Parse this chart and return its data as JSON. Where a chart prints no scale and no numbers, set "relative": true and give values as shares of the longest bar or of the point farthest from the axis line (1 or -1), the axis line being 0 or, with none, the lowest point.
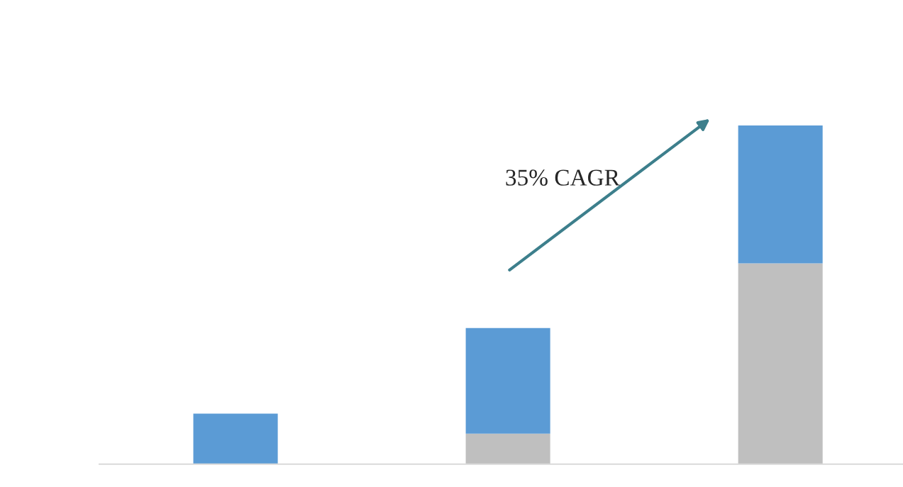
{
  "chart_data": {
    "type": "bar",
    "relative": true,
    "stacked": true,
    "categories": [
      null,
      null,
      null
    ],
    "series": [
      {
        "color": "#bfbfbf",
        "values": [
          0,
          0.09,
          0.593
        ]
      },
      {
        "color": "#5b9bd5",
        "values": [
          0.149,
          0.312,
          0.407
        ]
      }
    ],
    "annotations": [
      "35% CAGR"
    ]
  }
}
